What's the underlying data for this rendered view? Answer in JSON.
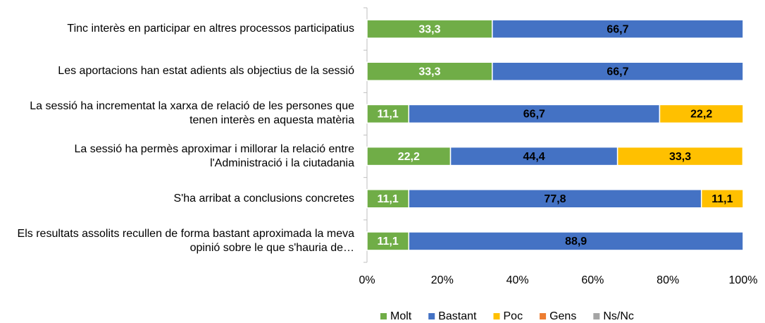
{
  "chart_data": {
    "type": "bar",
    "orientation": "horizontal",
    "stacked": true,
    "categories": [
      "Tinc interès en participar en altres processos participatius",
      "Les aportacions han estat adients als objectius de la sessió",
      "La sessió ha incrementat la xarxa de relació de les persones que tenen interès en aquesta matèria",
      "La sessió ha permès aproximar i millorar la relació entre l'Administració i la ciutadania",
      "S'ha arribat a conclusions concretes",
      "Els resultats assolits recullen de forma bastant aproximada la meva opinió sobre le que s'hauria de…"
    ],
    "series": [
      {
        "name": "Molt",
        "color": "#70ad47",
        "label_color": "#ffffff",
        "values": [
          33.3,
          33.3,
          11.1,
          22.2,
          11.1,
          11.1
        ],
        "value_labels": [
          "33,3",
          "33,3",
          "11,1",
          "22,2",
          "11,1",
          "11,1"
        ]
      },
      {
        "name": "Bastant",
        "color": "#4472c4",
        "label_color": "#000000",
        "values": [
          66.7,
          66.7,
          66.7,
          44.4,
          77.8,
          88.9
        ],
        "value_labels": [
          "66,7",
          "66,7",
          "66,7",
          "44,4",
          "77,8",
          "88,9"
        ]
      },
      {
        "name": "Poc",
        "color": "#ffc000",
        "label_color": "#000000",
        "values": [
          0,
          0,
          22.2,
          33.3,
          11.1,
          0
        ],
        "value_labels": [
          null,
          null,
          "22,2",
          "33,3",
          "11,1",
          null
        ]
      },
      {
        "name": "Gens",
        "color": "#ed7d31",
        "label_color": "#000000",
        "values": [
          0,
          0,
          0,
          0,
          0,
          0
        ]
      },
      {
        "name": "Ns/Nc",
        "color": "#a5a5a5",
        "label_color": "#000000",
        "values": [
          0,
          0,
          0,
          0,
          0,
          0
        ]
      }
    ],
    "xlim": [
      0,
      100
    ],
    "xticks": [
      {
        "value": 0,
        "label": "0%"
      },
      {
        "value": 20,
        "label": "20%"
      },
      {
        "value": 40,
        "label": "40%"
      },
      {
        "value": 60,
        "label": "60%"
      },
      {
        "value": 80,
        "label": "80%"
      },
      {
        "value": 100,
        "label": "100%"
      }
    ],
    "legend": "bottom"
  }
}
